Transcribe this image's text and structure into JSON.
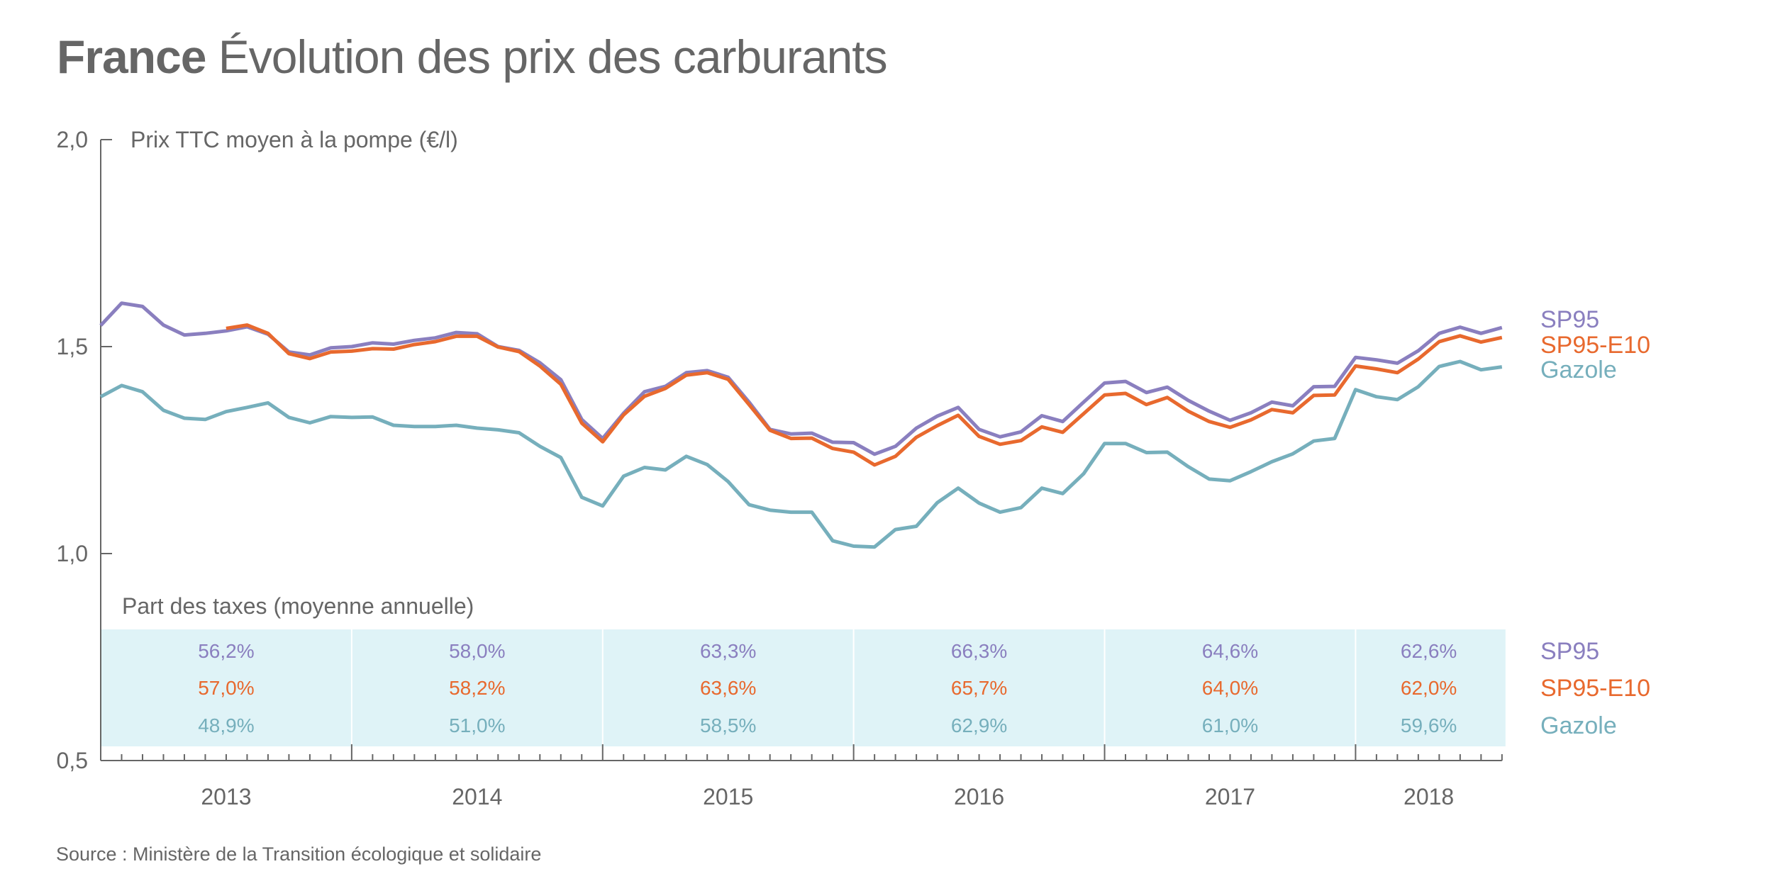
{
  "header": {
    "title_bold": "France",
    "title_rest": "Évolution des prix des carburants"
  },
  "footer": {
    "source": "Source : Ministère de la Transition écologique et solidaire"
  },
  "colors": {
    "SP95": "#8a7fbf",
    "SP95-E10": "#e8692e",
    "Gazole": "#76afbc",
    "axis": "#666666",
    "tax_band": "#dff3f7",
    "tax_separator": "#ffffff"
  },
  "chart_data": {
    "type": "line",
    "title": "France Évolution des prix des carburants",
    "ylabel": "Prix TTC moyen à la pompe (€/l)",
    "xlabel": "",
    "ylim": [
      0.5,
      2.0
    ],
    "yticks": [
      {
        "value": 2.0,
        "label": "2,0"
      },
      {
        "value": 1.5,
        "label": "1,5"
      },
      {
        "value": 1.0,
        "label": "1,0"
      },
      {
        "value": 0.5,
        "label": "0,5"
      }
    ],
    "grid": false,
    "x_unit": "month",
    "x_start": "2013-01",
    "x_end": "2018-08",
    "n_points": 68,
    "year_ticks": [
      {
        "label": "2013",
        "start_index": 0,
        "end_index": 11
      },
      {
        "label": "2014",
        "start_index": 12,
        "end_index": 23
      },
      {
        "label": "2015",
        "start_index": 24,
        "end_index": 35
      },
      {
        "label": "2016",
        "start_index": 36,
        "end_index": 47
      },
      {
        "label": "2017",
        "start_index": 48,
        "end_index": 59
      },
      {
        "label": "2018",
        "start_index": 60,
        "end_index": 67
      }
    ],
    "legend_placement": "right",
    "series": [
      {
        "name": "SP95",
        "start_index": 0,
        "values": [
          1.551,
          1.605,
          1.597,
          1.552,
          1.528,
          1.532,
          1.538,
          1.548,
          1.53,
          1.487,
          1.48,
          1.497,
          1.5,
          1.509,
          1.506,
          1.515,
          1.521,
          1.534,
          1.531,
          1.5,
          1.491,
          1.461,
          1.42,
          1.324,
          1.278,
          1.339,
          1.391,
          1.404,
          1.437,
          1.442,
          1.426,
          1.366,
          1.3,
          1.289,
          1.291,
          1.269,
          1.268,
          1.24,
          1.259,
          1.303,
          1.332,
          1.353,
          1.3,
          1.282,
          1.294,
          1.333,
          1.319,
          1.366,
          1.412,
          1.416,
          1.389,
          1.402,
          1.37,
          1.344,
          1.322,
          1.34,
          1.366,
          1.357,
          1.403,
          1.404,
          1.474,
          1.468,
          1.46,
          1.49,
          1.532,
          1.547,
          1.532,
          1.546
        ]
      },
      {
        "name": "SP95-E10",
        "start_index": 6,
        "values": [
          1.544,
          1.552,
          1.532,
          1.483,
          1.471,
          1.487,
          1.489,
          1.495,
          1.494,
          1.505,
          1.512,
          1.525,
          1.525,
          1.499,
          1.488,
          1.453,
          1.409,
          1.315,
          1.27,
          1.335,
          1.38,
          1.399,
          1.431,
          1.437,
          1.421,
          1.36,
          1.298,
          1.278,
          1.279,
          1.254,
          1.245,
          1.214,
          1.235,
          1.281,
          1.309,
          1.334,
          1.283,
          1.264,
          1.273,
          1.306,
          1.293,
          1.338,
          1.383,
          1.387,
          1.36,
          1.377,
          1.344,
          1.319,
          1.305,
          1.323,
          1.348,
          1.34,
          1.382,
          1.383,
          1.453,
          1.446,
          1.437,
          1.47,
          1.512,
          1.526,
          1.511,
          1.522
        ]
      },
      {
        "name": "Gazole",
        "start_index": 0,
        "values": [
          1.379,
          1.406,
          1.391,
          1.346,
          1.327,
          1.324,
          1.343,
          1.353,
          1.364,
          1.329,
          1.316,
          1.331,
          1.329,
          1.33,
          1.31,
          1.307,
          1.307,
          1.31,
          1.303,
          1.299,
          1.292,
          1.259,
          1.232,
          1.136,
          1.115,
          1.187,
          1.208,
          1.202,
          1.235,
          1.215,
          1.174,
          1.118,
          1.105,
          1.1,
          1.1,
          1.031,
          1.018,
          1.016,
          1.058,
          1.066,
          1.123,
          1.158,
          1.122,
          1.1,
          1.111,
          1.158,
          1.145,
          1.193,
          1.266,
          1.266,
          1.244,
          1.245,
          1.21,
          1.18,
          1.176,
          1.198,
          1.222,
          1.241,
          1.272,
          1.278,
          1.396,
          1.379,
          1.372,
          1.403,
          1.452,
          1.464,
          1.444,
          1.451
        ]
      }
    ],
    "tax_table": {
      "title": "Part des taxes (moyenne annuelle)",
      "years": [
        "2013",
        "2014",
        "2015",
        "2016",
        "2017",
        "2018"
      ],
      "rows": [
        {
          "name": "SP95",
          "values": [
            "56,2%",
            "58,0%",
            "63,3%",
            "66,3%",
            "64,6%",
            "62,6%"
          ]
        },
        {
          "name": "SP95-E10",
          "values": [
            "57,0%",
            "58,2%",
            "63,6%",
            "65,7%",
            "64,0%",
            "62,0%"
          ]
        },
        {
          "name": "Gazole",
          "values": [
            "48,9%",
            "51,0%",
            "58,5%",
            "62,9%",
            "61,0%",
            "59,6%"
          ]
        }
      ]
    }
  }
}
